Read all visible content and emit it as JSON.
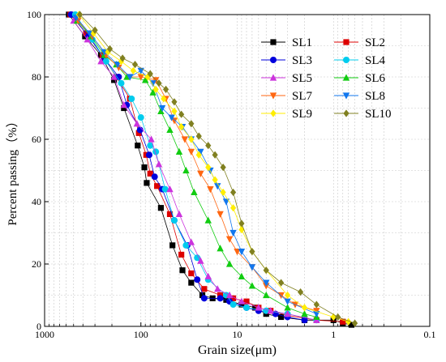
{
  "chart_data": {
    "type": "scatter",
    "xlabel": "Grain size(μm)",
    "ylabel": "Percent passing（%）",
    "xscale": "log",
    "xreversed": true,
    "xlim": [
      1000,
      0.1
    ],
    "ylim": [
      0,
      100
    ],
    "xticks": [
      {
        "value": 1000,
        "label": "1000"
      },
      {
        "value": 100,
        "label": "100"
      },
      {
        "value": 10,
        "label": "10"
      },
      {
        "value": 1,
        "label": "1"
      },
      {
        "value": 0.1,
        "label": "0.1"
      }
    ],
    "yticks": [
      {
        "value": 0,
        "label": "0"
      },
      {
        "value": 20,
        "label": "20"
      },
      {
        "value": 40,
        "label": "40"
      },
      {
        "value": 60,
        "label": "60"
      },
      {
        "value": 80,
        "label": "80"
      },
      {
        "value": 100,
        "label": "100"
      }
    ],
    "grid": "dashed, minor log grid",
    "legend_position": "top-right",
    "series": [
      {
        "name": "SL1",
        "color": "#000000",
        "marker": "square",
        "points": [
          [
            560,
            100
          ],
          [
            380,
            93
          ],
          [
            260,
            87
          ],
          [
            190,
            79
          ],
          [
            150,
            70
          ],
          [
            108,
            58
          ],
          [
            92,
            51
          ],
          [
            87,
            46
          ],
          [
            62,
            38
          ],
          [
            47,
            26
          ],
          [
            37,
            18
          ],
          [
            30,
            14
          ],
          [
            23,
            10
          ],
          [
            18,
            9
          ],
          [
            13,
            8.5
          ],
          [
            9,
            7
          ],
          [
            6.5,
            6
          ],
          [
            5,
            4
          ],
          [
            3.5,
            3
          ],
          [
            2,
            2
          ],
          [
            1,
            2
          ],
          [
            0.8,
            1
          ],
          [
            0.65,
            0.5
          ]
        ]
      },
      {
        "name": "SL2",
        "color": "#dd0000",
        "marker": "square",
        "points": [
          [
            540,
            100
          ],
          [
            370,
            94
          ],
          [
            250,
            87
          ],
          [
            180,
            80
          ],
          [
            130,
            73
          ],
          [
            105,
            62
          ],
          [
            88,
            55
          ],
          [
            80,
            49
          ],
          [
            68,
            45
          ],
          [
            50,
            36
          ],
          [
            38,
            23
          ],
          [
            30,
            17
          ],
          [
            22,
            12
          ],
          [
            15,
            10
          ],
          [
            11,
            9
          ],
          [
            8,
            8
          ],
          [
            6,
            6
          ],
          [
            4.5,
            5
          ],
          [
            3,
            3.5
          ],
          [
            1.5,
            2
          ],
          [
            0.8,
            1.5
          ]
        ]
      },
      {
        "name": "SL3",
        "color": "#0000dd",
        "marker": "circle",
        "points": [
          [
            530,
            100
          ],
          [
            350,
            93
          ],
          [
            240,
            86
          ],
          [
            170,
            80
          ],
          [
            140,
            71
          ],
          [
            102,
            63
          ],
          [
            82,
            55
          ],
          [
            72,
            48
          ],
          [
            60,
            44
          ],
          [
            45,
            34
          ],
          [
            33,
            26
          ],
          [
            26,
            15
          ],
          [
            22,
            9
          ],
          [
            15,
            9
          ],
          [
            12,
            8
          ],
          [
            8,
            6
          ],
          [
            6,
            5
          ],
          [
            4,
            4
          ],
          [
            3,
            3
          ],
          [
            2,
            2
          ]
        ]
      },
      {
        "name": "SL4",
        "color": "#00ccee",
        "marker": "circle",
        "points": [
          [
            480,
            100
          ],
          [
            320,
            92
          ],
          [
            230,
            85
          ],
          [
            160,
            78
          ],
          [
            125,
            73
          ],
          [
            100,
            67
          ],
          [
            80,
            58
          ],
          [
            70,
            56
          ],
          [
            56,
            44
          ],
          [
            45,
            34
          ],
          [
            34,
            26
          ],
          [
            26,
            22
          ],
          [
            20,
            15
          ],
          [
            13,
            10
          ],
          [
            11,
            7
          ],
          [
            8,
            6
          ],
          [
            5,
            5
          ],
          [
            3,
            4
          ],
          [
            1.5,
            2
          ]
        ]
      },
      {
        "name": "SL5",
        "color": "#cc33dd",
        "marker": "triangle-up",
        "points": [
          [
            500,
            98
          ],
          [
            360,
            92
          ],
          [
            260,
            85
          ],
          [
            190,
            80
          ],
          [
            150,
            71
          ],
          [
            110,
            65
          ],
          [
            78,
            60
          ],
          [
            65,
            52
          ],
          [
            50,
            44
          ],
          [
            40,
            36
          ],
          [
            30,
            27
          ],
          [
            24,
            21
          ],
          [
            20,
            16
          ],
          [
            16,
            12
          ],
          [
            12,
            10
          ],
          [
            9,
            8
          ],
          [
            6,
            6
          ],
          [
            4.5,
            5
          ],
          [
            3,
            4
          ],
          [
            1.5,
            2
          ]
        ]
      },
      {
        "name": "SL6",
        "color": "#11cc11",
        "marker": "triangle-up",
        "points": [
          [
            460,
            98
          ],
          [
            330,
            93
          ],
          [
            240,
            87
          ],
          [
            180,
            84
          ],
          [
            140,
            80
          ],
          [
            90,
            79
          ],
          [
            75,
            75
          ],
          [
            62,
            69
          ],
          [
            50,
            63
          ],
          [
            40,
            56
          ],
          [
            34,
            50
          ],
          [
            28,
            43
          ],
          [
            20,
            34
          ],
          [
            15,
            25
          ],
          [
            12,
            20
          ],
          [
            9,
            16
          ],
          [
            7,
            13
          ],
          [
            5,
            10
          ],
          [
            3,
            6
          ],
          [
            2,
            4
          ],
          [
            1.5,
            3
          ]
        ]
      },
      {
        "name": "SL7",
        "color": "#ff6611",
        "marker": "triangle-down",
        "points": [
          [
            450,
            98
          ],
          [
            320,
            93
          ],
          [
            230,
            87
          ],
          [
            170,
            83
          ],
          [
            130,
            80
          ],
          [
            100,
            80
          ],
          [
            70,
            79
          ],
          [
            55,
            73
          ],
          [
            45,
            66
          ],
          [
            35,
            60
          ],
          [
            30,
            56
          ],
          [
            24,
            49
          ],
          [
            19,
            44
          ],
          [
            15,
            36
          ],
          [
            12,
            28
          ],
          [
            10,
            24
          ],
          [
            7,
            19
          ],
          [
            5,
            13
          ],
          [
            3.5,
            10
          ],
          [
            2.5,
            7
          ],
          [
            1.5,
            5
          ]
        ]
      },
      {
        "name": "SL8",
        "color": "#1177ee",
        "marker": "triangle-down",
        "points": [
          [
            470,
            99
          ],
          [
            340,
            94
          ],
          [
            240,
            88
          ],
          [
            175,
            84
          ],
          [
            130,
            80
          ],
          [
            100,
            82
          ],
          [
            75,
            78
          ],
          [
            60,
            70
          ],
          [
            48,
            67
          ],
          [
            37,
            64
          ],
          [
            30,
            60
          ],
          [
            24,
            56
          ],
          [
            19,
            50
          ],
          [
            16,
            45
          ],
          [
            13,
            40
          ],
          [
            11,
            30
          ],
          [
            9,
            24
          ],
          [
            7,
            19
          ],
          [
            5,
            14
          ],
          [
            3,
            8
          ],
          [
            1.5,
            4
          ]
        ]
      },
      {
        "name": "SL9",
        "color": "#ffee00",
        "marker": "diamond",
        "points": [
          [
            440,
            100
          ],
          [
            310,
            94
          ],
          [
            220,
            88
          ],
          [
            160,
            85
          ],
          [
            120,
            82
          ],
          [
            85,
            80
          ],
          [
            70,
            76
          ],
          [
            58,
            73
          ],
          [
            45,
            69
          ],
          [
            38,
            64
          ],
          [
            30,
            60
          ],
          [
            25,
            55
          ],
          [
            20,
            51
          ],
          [
            17,
            47
          ],
          [
            14,
            43
          ],
          [
            11,
            38
          ],
          [
            9,
            31
          ],
          [
            7,
            24
          ],
          [
            5,
            18
          ],
          [
            3,
            10
          ],
          [
            2,
            6
          ],
          [
            1,
            3
          ],
          [
            0.7,
            1.5
          ]
        ]
      },
      {
        "name": "SL10",
        "color": "#808020",
        "marker": "diamond",
        "points": [
          [
            430,
            100
          ],
          [
            300,
            95
          ],
          [
            210,
            89
          ],
          [
            155,
            86
          ],
          [
            115,
            84
          ],
          [
            80,
            81
          ],
          [
            65,
            78
          ],
          [
            55,
            76
          ],
          [
            45,
            72
          ],
          [
            38,
            68
          ],
          [
            30,
            65
          ],
          [
            25,
            61
          ],
          [
            20,
            58
          ],
          [
            17,
            55
          ],
          [
            14,
            51
          ],
          [
            11,
            43
          ],
          [
            9,
            33
          ],
          [
            7,
            24
          ],
          [
            5,
            18
          ],
          [
            3.5,
            14
          ],
          [
            2.2,
            11
          ],
          [
            1.5,
            7
          ],
          [
            0.9,
            3
          ],
          [
            0.6,
            1
          ]
        ]
      }
    ]
  }
}
